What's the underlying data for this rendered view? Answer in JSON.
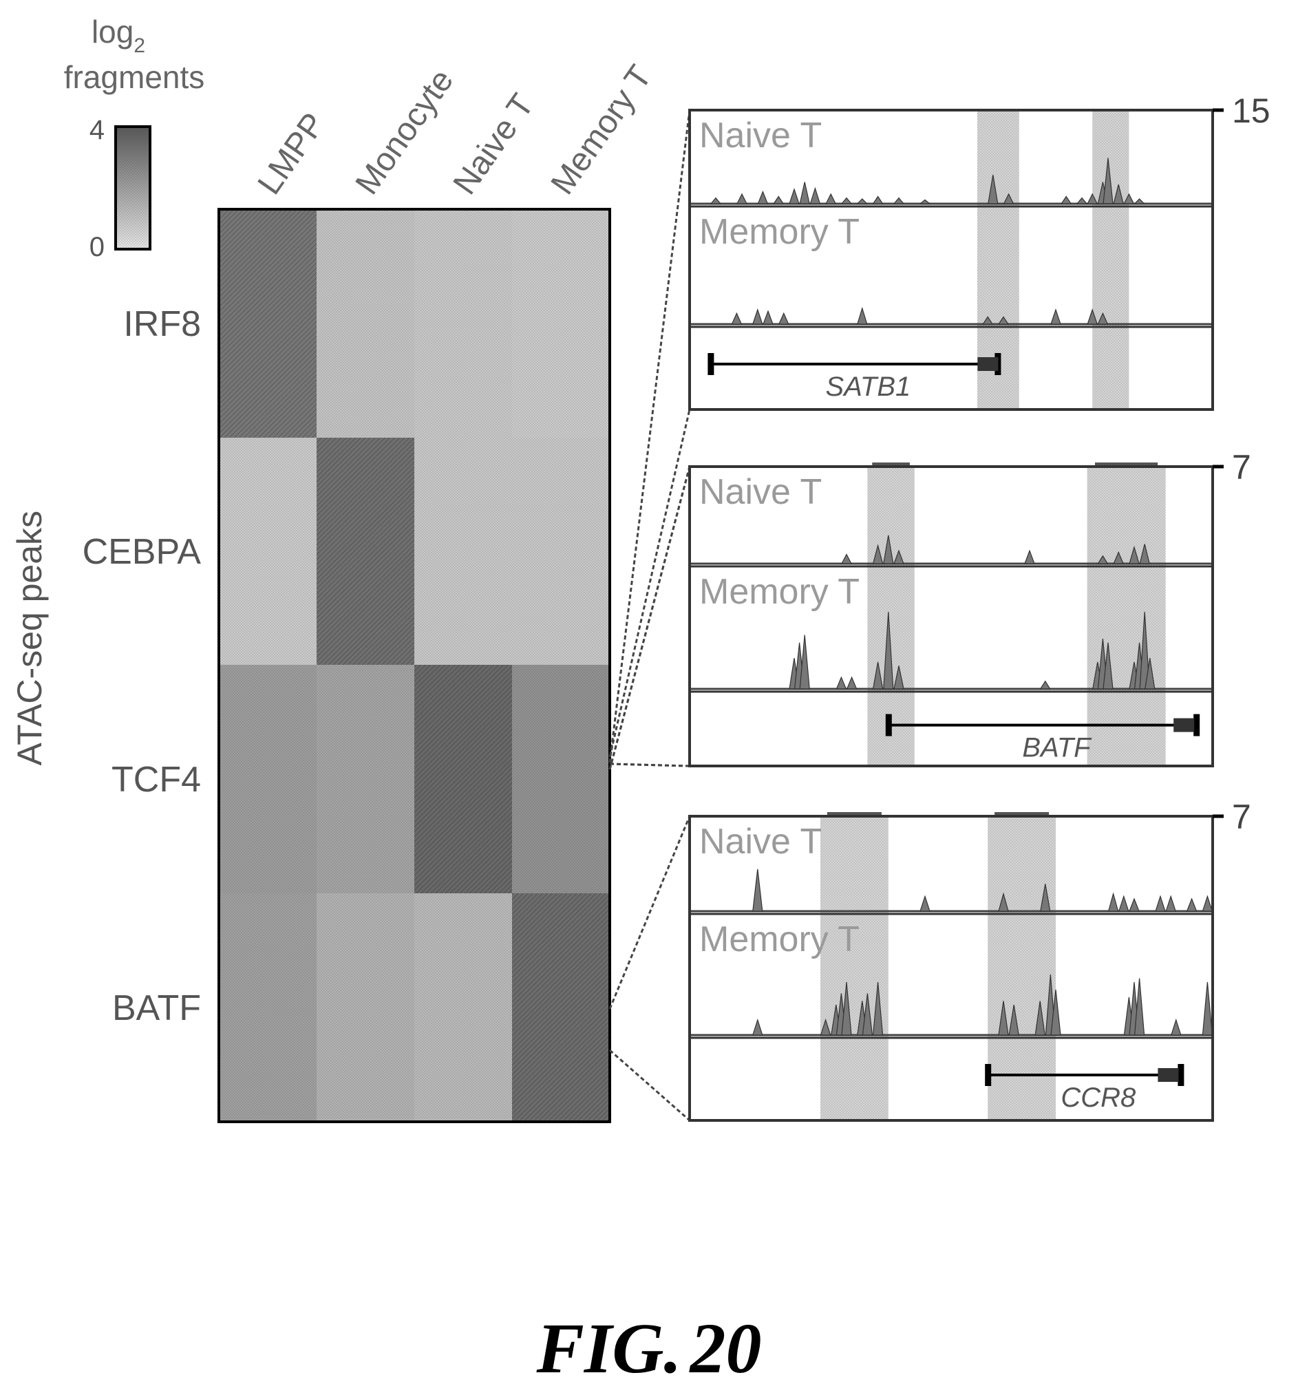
{
  "figure": {
    "label": "FIG.",
    "number": "20"
  },
  "chart_data": [
    {
      "type": "heatmap",
      "ylabel": "ATAC-seq peaks",
      "columns": [
        "LMPP",
        "Monocyte",
        "Naive T",
        "Memory T"
      ],
      "row_groups": [
        "IRF8",
        "CEBPA",
        "TCF4",
        "BATF"
      ],
      "values": [
        [
          3.2,
          1.0,
          0.9,
          0.8
        ],
        [
          0.8,
          3.4,
          0.9,
          0.9
        ],
        [
          2.1,
          1.9,
          3.6,
          2.4
        ],
        [
          2.0,
          1.5,
          1.3,
          3.5
        ]
      ],
      "colorbar": {
        "title_line1": "log",
        "title_sub": "2",
        "title_line2": "fragments",
        "min": 0,
        "max": 4,
        "min_label": "0",
        "max_label": "4",
        "low_color": "#e6e6e6",
        "high_color": "#5a5a5a"
      }
    },
    {
      "type": "area",
      "group": "TCF4",
      "ymax": 15,
      "ymax_label": "15",
      "tracks": [
        {
          "name": "Naive T",
          "peaks": [
            [
              0.05,
              0.12
            ],
            [
              0.1,
              0.2
            ],
            [
              0.14,
              0.25
            ],
            [
              0.17,
              0.15
            ],
            [
              0.2,
              0.3
            ],
            [
              0.22,
              0.45
            ],
            [
              0.24,
              0.32
            ],
            [
              0.27,
              0.2
            ],
            [
              0.3,
              0.12
            ],
            [
              0.33,
              0.1
            ],
            [
              0.36,
              0.15
            ],
            [
              0.4,
              0.12
            ],
            [
              0.45,
              0.08
            ],
            [
              0.58,
              0.6
            ],
            [
              0.61,
              0.2
            ],
            [
              0.72,
              0.15
            ],
            [
              0.75,
              0.12
            ],
            [
              0.77,
              0.2
            ],
            [
              0.79,
              0.45
            ],
            [
              0.8,
              0.95
            ],
            [
              0.82,
              0.4
            ],
            [
              0.84,
              0.2
            ],
            [
              0.86,
              0.1
            ]
          ]
        },
        {
          "name": "Memory T",
          "peaks": [
            [
              0.09,
              0.15
            ],
            [
              0.13,
              0.2
            ],
            [
              0.15,
              0.18
            ],
            [
              0.18,
              0.15
            ],
            [
              0.33,
              0.22
            ],
            [
              0.57,
              0.1
            ],
            [
              0.6,
              0.1
            ],
            [
              0.7,
              0.2
            ],
            [
              0.77,
              0.2
            ],
            [
              0.79,
              0.15
            ]
          ]
        }
      ],
      "gene": {
        "name": "SATB1",
        "start": 0.04,
        "end": 0.59,
        "strand": "-"
      },
      "highlights": [
        [
          0.55,
          0.63
        ],
        [
          0.77,
          0.84
        ]
      ]
    },
    {
      "type": "area",
      "group": "BATF",
      "ymax": 7,
      "ymax_label": "7",
      "tracks": [
        {
          "name": "Naive T",
          "peaks": [
            [
              0.3,
              0.18
            ],
            [
              0.36,
              0.35
            ],
            [
              0.38,
              0.55
            ],
            [
              0.4,
              0.25
            ],
            [
              0.65,
              0.25
            ],
            [
              0.79,
              0.15
            ],
            [
              0.82,
              0.22
            ],
            [
              0.85,
              0.32
            ],
            [
              0.87,
              0.38
            ]
          ]
        },
        {
          "name": "Memory T",
          "peaks": [
            [
              0.2,
              0.4
            ],
            [
              0.21,
              0.6
            ],
            [
              0.22,
              0.7
            ],
            [
              0.29,
              0.15
            ],
            [
              0.31,
              0.15
            ],
            [
              0.36,
              0.35
            ],
            [
              0.38,
              1.0
            ],
            [
              0.4,
              0.3
            ],
            [
              0.68,
              0.1
            ],
            [
              0.78,
              0.35
            ],
            [
              0.79,
              0.65
            ],
            [
              0.8,
              0.6
            ],
            [
              0.85,
              0.35
            ],
            [
              0.86,
              0.6
            ],
            [
              0.87,
              1.0
            ],
            [
              0.88,
              0.4
            ]
          ]
        }
      ],
      "gene": {
        "name": "BATF",
        "start": 0.38,
        "end": 0.97,
        "strand": "+"
      },
      "highlights": [
        [
          0.34,
          0.43
        ],
        [
          0.76,
          0.91
        ]
      ]
    },
    {
      "type": "area",
      "group": "BATF",
      "ymax": 7,
      "ymax_label": "7",
      "tracks": [
        {
          "name": "Naive T",
          "peaks": [
            [
              0.13,
              0.85
            ],
            [
              0.45,
              0.3
            ],
            [
              0.6,
              0.35
            ],
            [
              0.68,
              0.55
            ],
            [
              0.81,
              0.35
            ],
            [
              0.83,
              0.3
            ],
            [
              0.85,
              0.25
            ],
            [
              0.9,
              0.3
            ],
            [
              0.92,
              0.3
            ],
            [
              0.96,
              0.25
            ],
            [
              0.99,
              0.3
            ]
          ]
        },
        {
          "name": "Memory T",
          "peaks": [
            [
              0.13,
              0.2
            ],
            [
              0.26,
              0.2
            ],
            [
              0.28,
              0.4
            ],
            [
              0.29,
              0.55
            ],
            [
              0.3,
              0.7
            ],
            [
              0.33,
              0.45
            ],
            [
              0.34,
              0.55
            ],
            [
              0.36,
              0.7
            ],
            [
              0.6,
              0.45
            ],
            [
              0.62,
              0.4
            ],
            [
              0.67,
              0.45
            ],
            [
              0.69,
              0.8
            ],
            [
              0.7,
              0.6
            ],
            [
              0.84,
              0.5
            ],
            [
              0.85,
              0.7
            ],
            [
              0.86,
              0.75
            ],
            [
              0.93,
              0.2
            ],
            [
              0.99,
              0.7
            ]
          ]
        }
      ],
      "gene": {
        "name": "CCR8",
        "start": 0.57,
        "end": 0.94,
        "strand": "+"
      },
      "highlights": [
        [
          0.25,
          0.38
        ],
        [
          0.57,
          0.7
        ]
      ]
    }
  ]
}
